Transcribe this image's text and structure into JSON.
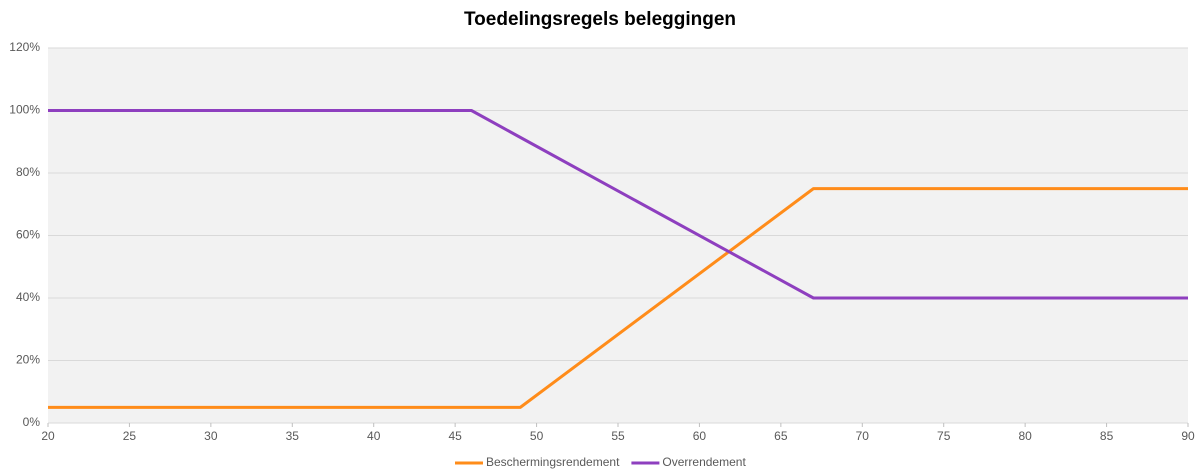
{
  "chart_data": {
    "type": "line",
    "title": "Toedelingsregels beleggingen",
    "x": [
      20,
      46,
      49,
      67,
      90
    ],
    "series": [
      {
        "name": "Beschermingsrendement",
        "color": "#ff8c1a",
        "values": [
          5,
          5,
          5,
          75,
          75
        ]
      },
      {
        "name": "Overrendement",
        "color": "#8e3fbf",
        "values": [
          100,
          100,
          91.4,
          40,
          40
        ]
      }
    ],
    "xlim": [
      20,
      90
    ],
    "xticks": [
      20,
      25,
      30,
      35,
      40,
      45,
      50,
      55,
      60,
      65,
      70,
      75,
      80,
      85,
      90
    ],
    "ylim": [
      0,
      120
    ],
    "yticks": [
      {
        "value": 0,
        "label": "0%"
      },
      {
        "value": 20,
        "label": "20%"
      },
      {
        "value": 40,
        "label": "40%"
      },
      {
        "value": 60,
        "label": "60%"
      },
      {
        "value": 80,
        "label": "80%"
      },
      {
        "value": 100,
        "label": "100%"
      },
      {
        "value": 120,
        "label": "120%"
      }
    ],
    "grid": true,
    "legend": "bottom"
  }
}
